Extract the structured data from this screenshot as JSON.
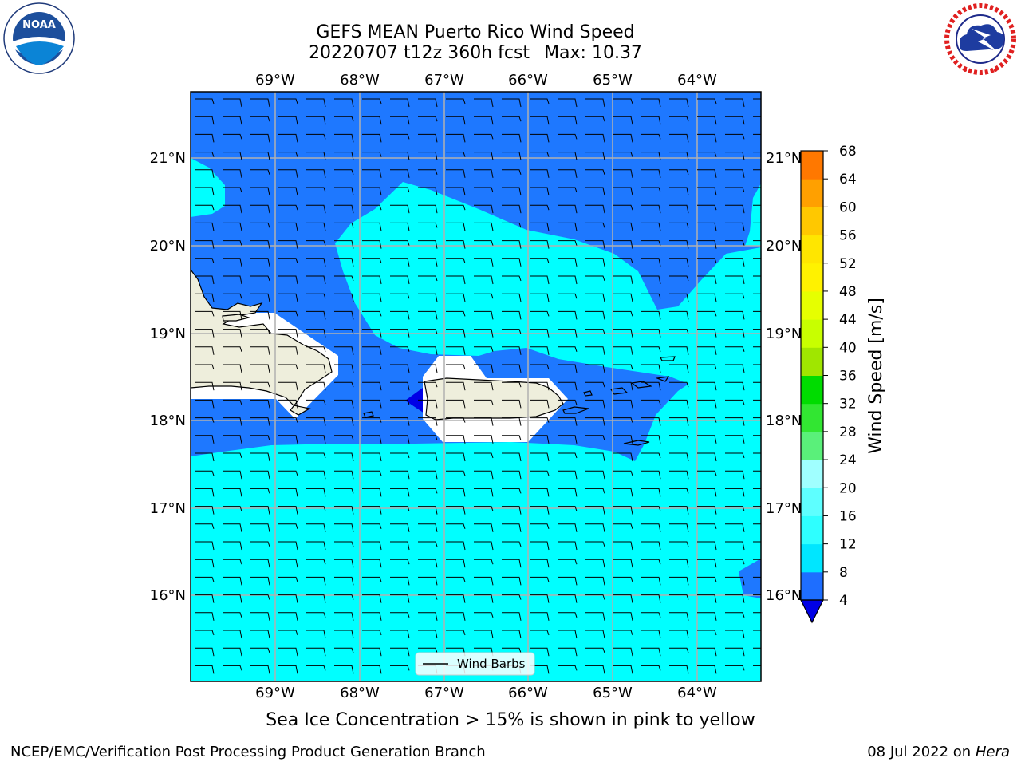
{
  "header": {
    "title_line1": "GEFS MEAN Puerto Rico Wind Speed",
    "title_run": "20220707 t12z 360h fcst",
    "title_max": "Max: 10.37"
  },
  "logos": {
    "left": {
      "icon": "noaa-logo",
      "text": "NOAA",
      "ring_text": "NATIONAL OCEANIC AND ATMOSPHERIC ADMINISTRATION · U.S. DEPARTMENT OF COMMERCE"
    },
    "right": {
      "icon": "nws-logo",
      "ring_text": "NATIONAL WEATHER SERVICE"
    }
  },
  "map": {
    "lon_labels": [
      "69°W",
      "68°W",
      "67°W",
      "66°W",
      "65°W",
      "64°W"
    ],
    "lat_labels": [
      "21°N",
      "20°N",
      "19°N",
      "18°N",
      "17°N",
      "16°N"
    ],
    "legend_label": "Wind Barbs",
    "colors": {
      "ocean_low": "#1e78ff",
      "ocean_mid": "#00ffff",
      "land": "#eeeedc",
      "deep": "#0000e6"
    }
  },
  "colorbar": {
    "label": "Wind Speed [m/s]",
    "ticks": [
      "4",
      "8",
      "12",
      "16",
      "20",
      "24",
      "28",
      "32",
      "36",
      "40",
      "44",
      "48",
      "52",
      "56",
      "60",
      "64",
      "68"
    ],
    "colors": [
      "#1e6eff",
      "#00e6ff",
      "#2effff",
      "#5effff",
      "#a0ffff",
      "#5af07a",
      "#32e632",
      "#00dc00",
      "#a0e600",
      "#c8ff00",
      "#e6ff00",
      "#fff200",
      "#ffe600",
      "#ffc800",
      "#ffa000",
      "#ff7800",
      "#ff5000",
      "#ff2800",
      "#ff0000"
    ],
    "under_color": "#0000e6"
  },
  "note": "Sea Ice Concentration > 15% is shown in pink to yellow",
  "footer": {
    "left": "NCEP/EMC/Verification Post Processing Product Generation Branch",
    "date": "08 Jul 2022 on",
    "machine": "Hera"
  }
}
